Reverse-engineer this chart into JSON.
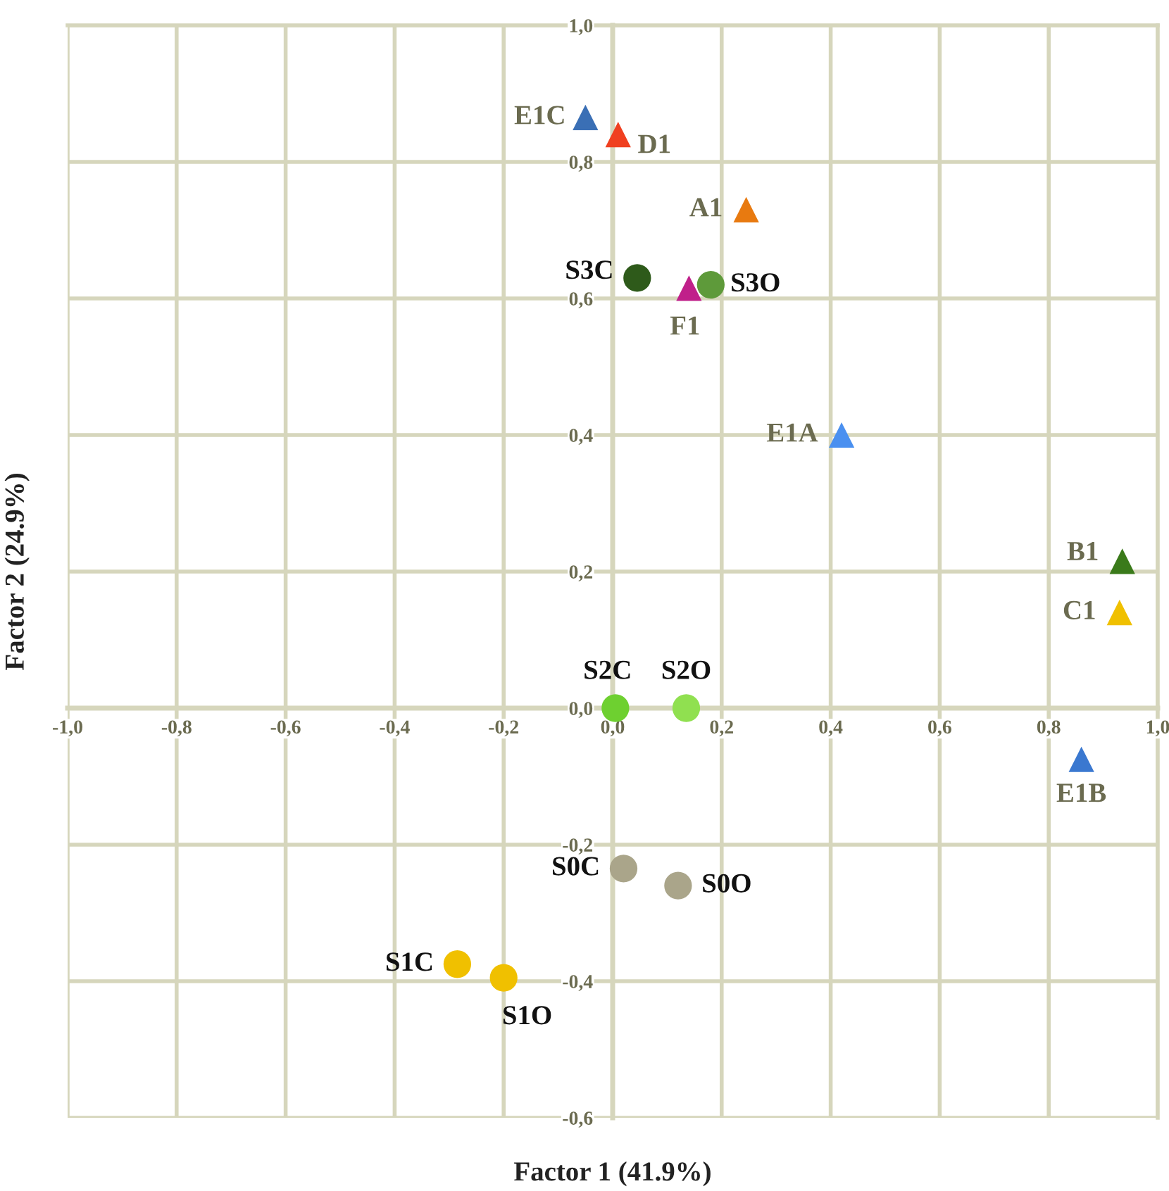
{
  "chart_data": {
    "type": "scatter",
    "xlabel": "Factor 1 (41.9%)",
    "ylabel": "Factor 2 (24.9%)",
    "xlim": [
      -1.0,
      1.0
    ],
    "ylim": [
      -0.6,
      1.0
    ],
    "xticks": [
      {
        "value": -1.0,
        "label": "-1,0"
      },
      {
        "value": -0.8,
        "label": "-0,8"
      },
      {
        "value": -0.6,
        "label": "-0,6"
      },
      {
        "value": -0.4,
        "label": "-0,4"
      },
      {
        "value": -0.2,
        "label": "-0,2"
      },
      {
        "value": 0.0,
        "label": "0,0"
      },
      {
        "value": 0.2,
        "label": "0,2"
      },
      {
        "value": 0.4,
        "label": "0,4"
      },
      {
        "value": 0.6,
        "label": "0,6"
      },
      {
        "value": 0.8,
        "label": "0,8"
      },
      {
        "value": 1.0,
        "label": "1,0"
      }
    ],
    "yticks": [
      {
        "value": -0.6,
        "label": "-0,6"
      },
      {
        "value": -0.4,
        "label": "-0,4"
      },
      {
        "value": -0.2,
        "label": "-0,2"
      },
      {
        "value": 0.0,
        "label": "0,0"
      },
      {
        "value": 0.2,
        "label": "0,2"
      },
      {
        "value": 0.4,
        "label": "0,4"
      },
      {
        "value": 0.6,
        "label": "0,6"
      },
      {
        "value": 0.8,
        "label": "0,8"
      },
      {
        "value": 1.0,
        "label": "1,0"
      }
    ],
    "grid": true,
    "series": [
      {
        "name": "E1C",
        "color": "#3a6fb5",
        "marker": "triangle",
        "x": [
          -0.05
        ],
        "values": [
          0.865
        ]
      },
      {
        "name": "D1",
        "color": "#f04020",
        "marker": "triangle",
        "x": [
          0.01
        ],
        "values": [
          0.84
        ]
      },
      {
        "name": "A1",
        "color": "#e87a10",
        "marker": "triangle",
        "x": [
          0.245
        ],
        "values": [
          0.73
        ]
      },
      {
        "name": "S3C",
        "color": "#2e5a1a",
        "marker": "circle",
        "x": [
          0.045
        ],
        "values": [
          0.63
        ]
      },
      {
        "name": "F1",
        "color": "#c0208a",
        "marker": "triangle",
        "x": [
          0.14
        ],
        "values": [
          0.615
        ]
      },
      {
        "name": "S3O",
        "color": "#5e9a3a",
        "marker": "circle",
        "x": [
          0.18
        ],
        "values": [
          0.62
        ]
      },
      {
        "name": "E1A",
        "color": "#4a90f0",
        "marker": "triangle",
        "x": [
          0.42
        ],
        "values": [
          0.4
        ]
      },
      {
        "name": "B1",
        "color": "#3a7a1a",
        "marker": "triangle",
        "x": [
          0.935
        ],
        "values": [
          0.215
        ]
      },
      {
        "name": "C1",
        "color": "#f0c000",
        "marker": "triangle",
        "x": [
          0.93
        ],
        "values": [
          0.14
        ]
      },
      {
        "name": "S2C",
        "color": "#6ed030",
        "marker": "circle",
        "x": [
          0.005
        ],
        "values": [
          0.0
        ]
      },
      {
        "name": "S2O",
        "color": "#90e050",
        "marker": "circle",
        "x": [
          0.135
        ],
        "values": [
          0.0
        ]
      },
      {
        "name": "E1B",
        "color": "#3a78d0",
        "marker": "triangle",
        "x": [
          0.86
        ],
        "values": [
          -0.075
        ]
      },
      {
        "name": "S0C",
        "color": "#aaa58a",
        "marker": "circle",
        "x": [
          0.02
        ],
        "values": [
          -0.235
        ]
      },
      {
        "name": "S0O",
        "color": "#aaa58a",
        "marker": "circle",
        "x": [
          0.12
        ],
        "values": [
          -0.26
        ]
      },
      {
        "name": "S1C",
        "color": "#f0c000",
        "marker": "circle",
        "x": [
          -0.285
        ],
        "values": [
          -0.375
        ]
      },
      {
        "name": "S1O",
        "color": "#f0c000",
        "marker": "circle",
        "x": [
          -0.2
        ],
        "values": [
          -0.395
        ]
      }
    ]
  }
}
